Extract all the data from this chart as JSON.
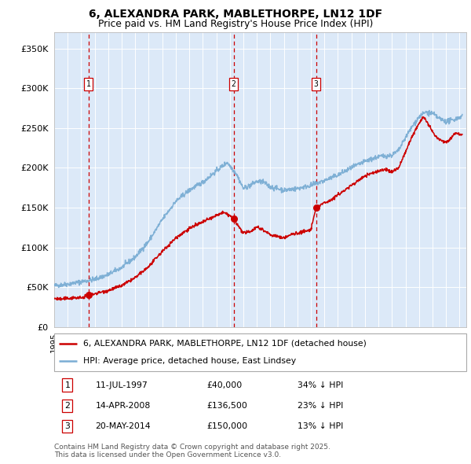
{
  "title": "6, ALEXANDRA PARK, MABLETHORPE, LN12 1DF",
  "subtitle": "Price paid vs. HM Land Registry's House Price Index (HPI)",
  "xlim_start": 1995.0,
  "xlim_end": 2025.5,
  "ylim": [
    0,
    370000
  ],
  "yticks": [
    0,
    50000,
    100000,
    150000,
    200000,
    250000,
    300000,
    350000
  ],
  "ytick_labels": [
    "£0",
    "£50K",
    "£100K",
    "£150K",
    "£200K",
    "£250K",
    "£300K",
    "£350K"
  ],
  "plot_bg_color": "#dce9f8",
  "grid_color": "#ffffff",
  "red_color": "#cc0000",
  "blue_color": "#7aadd4",
  "sale_dates": [
    1997.53,
    2008.28,
    2014.38
  ],
  "sale_prices": [
    40000,
    136500,
    150000
  ],
  "sale_labels": [
    "1",
    "2",
    "3"
  ],
  "legend_red": "6, ALEXANDRA PARK, MABLETHORPE, LN12 1DF (detached house)",
  "legend_blue": "HPI: Average price, detached house, East Lindsey",
  "table_data": [
    [
      "1",
      "11-JUL-1997",
      "£40,000",
      "34% ↓ HPI"
    ],
    [
      "2",
      "14-APR-2008",
      "£136,500",
      "23% ↓ HPI"
    ],
    [
      "3",
      "20-MAY-2014",
      "£150,000",
      "13% ↓ HPI"
    ]
  ],
  "footnote": "Contains HM Land Registry data © Crown copyright and database right 2025.\nThis data is licensed under the Open Government Licence v3.0.",
  "hpi_anchors": [
    [
      1995.0,
      52000
    ],
    [
      1996.0,
      54000
    ],
    [
      1997.0,
      57000
    ],
    [
      1998.0,
      60000
    ],
    [
      1999.0,
      66000
    ],
    [
      2000.0,
      75000
    ],
    [
      2001.0,
      88000
    ],
    [
      2002.0,
      108000
    ],
    [
      2003.0,
      135000
    ],
    [
      2004.0,
      158000
    ],
    [
      2005.0,
      172000
    ],
    [
      2006.0,
      182000
    ],
    [
      2007.0,
      196000
    ],
    [
      2007.8,
      207000
    ],
    [
      2008.5,
      192000
    ],
    [
      2009.0,
      174000
    ],
    [
      2009.5,
      178000
    ],
    [
      2010.0,
      183000
    ],
    [
      2010.5,
      182000
    ],
    [
      2011.0,
      176000
    ],
    [
      2012.0,
      172000
    ],
    [
      2013.0,
      174000
    ],
    [
      2014.0,
      178000
    ],
    [
      2015.0,
      184000
    ],
    [
      2016.0,
      191000
    ],
    [
      2017.0,
      200000
    ],
    [
      2018.0,
      208000
    ],
    [
      2019.0,
      214000
    ],
    [
      2020.0,
      216000
    ],
    [
      2020.5,
      222000
    ],
    [
      2021.0,
      238000
    ],
    [
      2021.5,
      252000
    ],
    [
      2022.0,
      264000
    ],
    [
      2022.5,
      270000
    ],
    [
      2023.0,
      268000
    ],
    [
      2023.5,
      262000
    ],
    [
      2024.0,
      258000
    ],
    [
      2024.5,
      260000
    ],
    [
      2025.2,
      265000
    ]
  ],
  "red_anchors": [
    [
      1995.0,
      36000
    ],
    [
      1995.5,
      35000
    ],
    [
      1996.0,
      36000
    ],
    [
      1996.5,
      37000
    ],
    [
      1997.0,
      36500
    ],
    [
      1997.53,
      40000
    ],
    [
      1998.0,
      42000
    ],
    [
      1999.0,
      46000
    ],
    [
      2000.0,
      52000
    ],
    [
      2001.0,
      62000
    ],
    [
      2002.0,
      76000
    ],
    [
      2003.0,
      95000
    ],
    [
      2004.0,
      112000
    ],
    [
      2005.0,
      124000
    ],
    [
      2006.0,
      132000
    ],
    [
      2007.0,
      140000
    ],
    [
      2007.5,
      144000
    ],
    [
      2008.0,
      140000
    ],
    [
      2008.28,
      136500
    ],
    [
      2008.5,
      130000
    ],
    [
      2009.0,
      118000
    ],
    [
      2009.5,
      120000
    ],
    [
      2010.0,
      126000
    ],
    [
      2010.5,
      122000
    ],
    [
      2011.0,
      116000
    ],
    [
      2011.5,
      114000
    ],
    [
      2012.0,
      112000
    ],
    [
      2012.5,
      116000
    ],
    [
      2013.0,
      118000
    ],
    [
      2013.5,
      120000
    ],
    [
      2014.0,
      122000
    ],
    [
      2014.38,
      150000
    ],
    [
      2015.0,
      156000
    ],
    [
      2015.5,
      160000
    ],
    [
      2016.0,
      166000
    ],
    [
      2017.0,
      178000
    ],
    [
      2018.0,
      190000
    ],
    [
      2019.0,
      196000
    ],
    [
      2019.5,
      198000
    ],
    [
      2020.0,
      195000
    ],
    [
      2020.5,
      200000
    ],
    [
      2021.0,
      220000
    ],
    [
      2021.5,
      240000
    ],
    [
      2022.0,
      256000
    ],
    [
      2022.3,
      264000
    ],
    [
      2022.5,
      260000
    ],
    [
      2023.0,
      245000
    ],
    [
      2023.3,
      238000
    ],
    [
      2023.7,
      234000
    ],
    [
      2024.0,
      232000
    ],
    [
      2024.3,
      236000
    ],
    [
      2024.7,
      244000
    ],
    [
      2025.2,
      242000
    ]
  ]
}
